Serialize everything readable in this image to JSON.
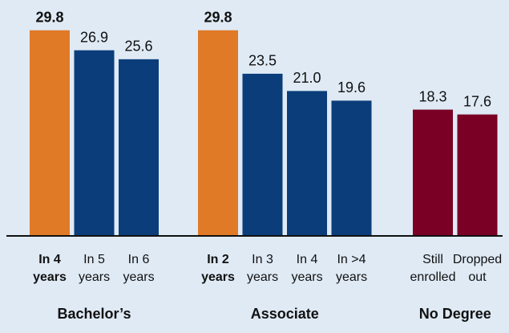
{
  "chart_data": {
    "type": "bar",
    "ylim": [
      0,
      30
    ],
    "groups": [
      {
        "name": "Bachelor’s",
        "categories": [
          [
            "In 4",
            "years"
          ],
          [
            "In 5",
            "years"
          ],
          [
            "In 6",
            "years"
          ]
        ],
        "values": [
          29.8,
          26.9,
          25.6
        ],
        "colors": [
          "#e07a27",
          "#0a3d7a",
          "#0a3d7a"
        ],
        "bold": [
          true,
          false,
          false
        ]
      },
      {
        "name": "Associate",
        "categories": [
          [
            "In 2",
            "years"
          ],
          [
            "In 3",
            "years"
          ],
          [
            "In 4",
            "years"
          ],
          [
            "In >4",
            "years"
          ]
        ],
        "values": [
          29.8,
          23.5,
          21.0,
          19.6
        ],
        "value_labels": [
          "29.8",
          "23.5",
          "21.0",
          "19.6"
        ],
        "colors": [
          "#e07a27",
          "#0a3d7a",
          "#0a3d7a",
          "#0a3d7a"
        ],
        "bold": [
          true,
          false,
          false,
          false
        ]
      },
      {
        "name": "No Degree",
        "categories": [
          [
            "Still",
            "enrolled"
          ],
          [
            "Dropped",
            "out"
          ]
        ],
        "values": [
          18.3,
          17.6
        ],
        "colors": [
          "#7a0025",
          "#7a0025"
        ],
        "bold": [
          false,
          false
        ]
      }
    ]
  }
}
